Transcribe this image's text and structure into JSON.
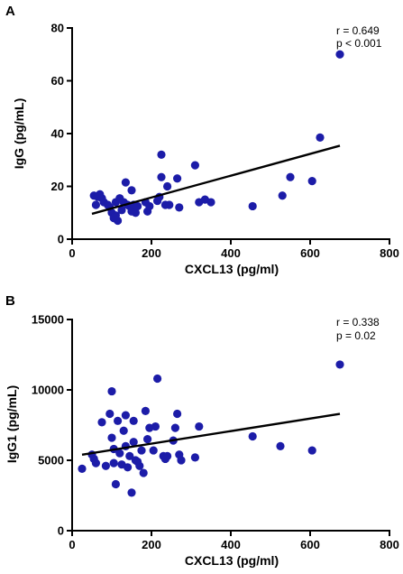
{
  "chart_data": [
    {
      "type": "scatter",
      "panel_label": "A",
      "xlabel": "CXCL13 (pg/ml)",
      "ylabel": "IgG (pg/mL)",
      "xlim": [
        0,
        800
      ],
      "ylim": [
        0,
        80
      ],
      "xticks": [
        0,
        200,
        400,
        600,
        800
      ],
      "yticks": [
        0,
        20,
        40,
        60,
        80
      ],
      "annotations": [
        "r = 0.649",
        "p < 0.001"
      ],
      "point_color": "#1c1ca8",
      "regression": {
        "x": [
          50,
          675
        ],
        "y": [
          9.6,
          35.4
        ]
      },
      "points": [
        [
          55,
          16.5
        ],
        [
          60,
          13
        ],
        [
          65,
          16
        ],
        [
          70,
          17
        ],
        [
          75,
          15.5
        ],
        [
          80,
          14
        ],
        [
          90,
          13
        ],
        [
          95,
          12
        ],
        [
          100,
          10
        ],
        [
          105,
          8
        ],
        [
          110,
          9
        ],
        [
          110,
          14
        ],
        [
          115,
          7
        ],
        [
          120,
          15.5
        ],
        [
          125,
          11
        ],
        [
          130,
          14
        ],
        [
          135,
          21.5
        ],
        [
          140,
          13
        ],
        [
          145,
          12.5
        ],
        [
          150,
          18.5
        ],
        [
          150,
          10.5
        ],
        [
          155,
          13
        ],
        [
          160,
          10
        ],
        [
          165,
          12.5
        ],
        [
          185,
          14
        ],
        [
          190,
          10.5
        ],
        [
          195,
          12.5
        ],
        [
          215,
          14.5
        ],
        [
          220,
          16
        ],
        [
          225,
          32
        ],
        [
          225,
          23.5
        ],
        [
          235,
          13
        ],
        [
          240,
          20
        ],
        [
          245,
          13
        ],
        [
          265,
          23
        ],
        [
          270,
          12
        ],
        [
          310,
          28
        ],
        [
          320,
          14
        ],
        [
          335,
          15
        ],
        [
          350,
          14
        ],
        [
          455,
          12.5
        ],
        [
          530,
          16.5
        ],
        [
          550,
          23.5
        ],
        [
          605,
          22
        ],
        [
          625,
          38.5
        ],
        [
          675,
          70
        ]
      ]
    },
    {
      "type": "scatter",
      "panel_label": "B",
      "xlabel": "CXCL13 (pg/ml)",
      "ylabel": "IgG1 (pg/mL)",
      "xlim": [
        0,
        800
      ],
      "ylim": [
        0,
        15000
      ],
      "xticks": [
        0,
        200,
        400,
        600,
        800
      ],
      "yticks": [
        0,
        5000,
        10000,
        15000
      ],
      "annotations": [
        "r = 0.338",
        "p = 0.02"
      ],
      "point_color": "#1c1ca8",
      "regression": {
        "x": [
          25,
          675
        ],
        "y": [
          5400,
          8300
        ]
      },
      "points": [
        [
          25,
          4400
        ],
        [
          50,
          5400
        ],
        [
          55,
          5100
        ],
        [
          60,
          4800
        ],
        [
          75,
          7700
        ],
        [
          85,
          4600
        ],
        [
          95,
          8300
        ],
        [
          100,
          9900
        ],
        [
          100,
          6600
        ],
        [
          105,
          5800
        ],
        [
          105,
          4800
        ],
        [
          110,
          3300
        ],
        [
          115,
          7800
        ],
        [
          120,
          5500
        ],
        [
          125,
          4700
        ],
        [
          130,
          7100
        ],
        [
          135,
          8200
        ],
        [
          135,
          6000
        ],
        [
          140,
          4500
        ],
        [
          145,
          5300
        ],
        [
          150,
          2700
        ],
        [
          155,
          7800
        ],
        [
          155,
          6300
        ],
        [
          160,
          5000
        ],
        [
          165,
          4900
        ],
        [
          170,
          4600
        ],
        [
          175,
          5700
        ],
        [
          180,
          4100
        ],
        [
          185,
          8500
        ],
        [
          190,
          6500
        ],
        [
          195,
          7300
        ],
        [
          205,
          5700
        ],
        [
          210,
          7400
        ],
        [
          215,
          10800
        ],
        [
          230,
          5300
        ],
        [
          235,
          5100
        ],
        [
          240,
          5300
        ],
        [
          255,
          6400
        ],
        [
          260,
          7300
        ],
        [
          265,
          8300
        ],
        [
          270,
          5400
        ],
        [
          275,
          5000
        ],
        [
          310,
          5200
        ],
        [
          320,
          7400
        ],
        [
          455,
          6700
        ],
        [
          525,
          6000
        ],
        [
          605,
          5700
        ],
        [
          675,
          11800
        ]
      ]
    }
  ]
}
